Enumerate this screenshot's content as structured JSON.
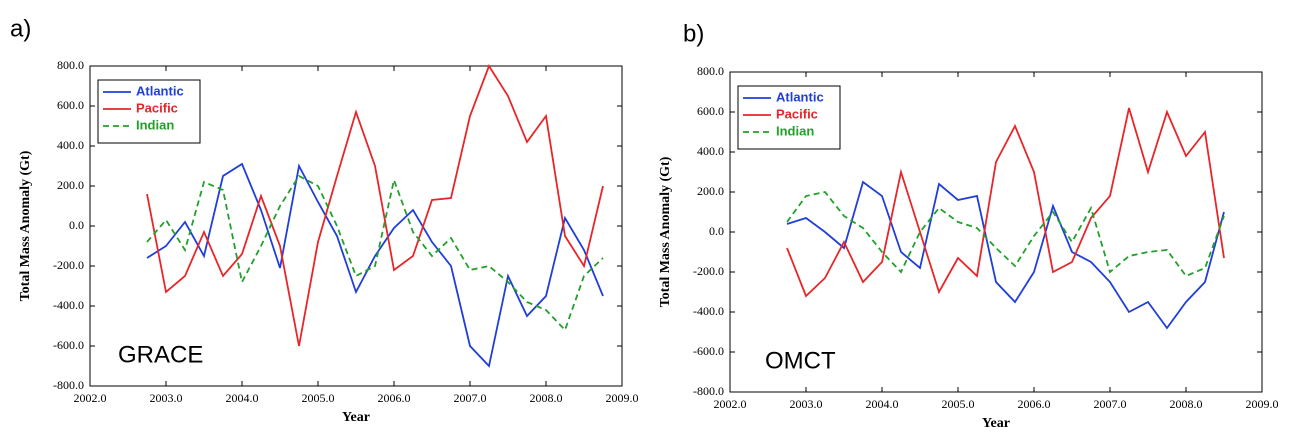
{
  "chart_data": [
    {
      "type": "line",
      "panel_label": "a)",
      "annotation": "GRACE",
      "x_label": "Year",
      "y_label": "Total Mass Anomaly (Gt)",
      "xlim": [
        2002,
        2009
      ],
      "ylim": [
        -800,
        800
      ],
      "xticks": [
        {
          "value": 2002,
          "label": "2002.0"
        },
        {
          "value": 2003,
          "label": "2003.0"
        },
        {
          "value": 2004,
          "label": "2004.0"
        },
        {
          "value": 2005,
          "label": "2005.0"
        },
        {
          "value": 2006,
          "label": "2006.0"
        },
        {
          "value": 2007,
          "label": "2007.0"
        },
        {
          "value": 2008,
          "label": "2008.0"
        },
        {
          "value": 2009,
          "label": "2009.0"
        }
      ],
      "yticks": [
        {
          "value": -800,
          "label": "-800.0"
        },
        {
          "value": -600,
          "label": "-600.0"
        },
        {
          "value": -400,
          "label": "-400.0"
        },
        {
          "value": -200,
          "label": "-200.0"
        },
        {
          "value": 0,
          "label": "0.0"
        },
        {
          "value": 200,
          "label": "200.0"
        },
        {
          "value": 400,
          "label": "400.0"
        },
        {
          "value": 600,
          "label": "600.0"
        },
        {
          "value": 800,
          "label": "800.0"
        }
      ],
      "legend": "upper left",
      "x": [
        2002.75,
        2003,
        2003.25,
        2003.5,
        2003.75,
        2004,
        2004.25,
        2004.5,
        2004.75,
        2005,
        2005.25,
        2005.5,
        2005.75,
        2006,
        2006.25,
        2006.5,
        2006.75,
        2007,
        2007.25,
        2007.5,
        2007.75,
        2008,
        2008.25,
        2008.5,
        2008.75
      ],
      "series": [
        {
          "name": "Atlantic",
          "color": "#1f3fd8",
          "linestyle": "solid",
          "values": [
            -160,
            -100,
            20,
            -150,
            250,
            310,
            80,
            -210,
            300,
            120,
            -50,
            -330,
            -150,
            -10,
            80,
            -80,
            -200,
            -600,
            -700,
            -250,
            -450,
            -350,
            40,
            -120,
            -350
          ]
        },
        {
          "name": "Pacific",
          "color": "#e8262a",
          "linestyle": "solid",
          "values": [
            160,
            -330,
            -250,
            -30,
            -250,
            -140,
            150,
            -100,
            -600,
            -80,
            250,
            570,
            300,
            -220,
            -150,
            130,
            140,
            550,
            800,
            650,
            420,
            550,
            -50,
            -200,
            200
          ]
        },
        {
          "name": "Indian",
          "color": "#22a02a",
          "linestyle": "dashed",
          "values": [
            -80,
            30,
            -120,
            220,
            180,
            -280,
            -100,
            100,
            250,
            200,
            0,
            -250,
            -200,
            230,
            -30,
            -150,
            -60,
            -220,
            -200,
            -280,
            -380,
            -420,
            -520,
            -250,
            -160
          ]
        }
      ]
    },
    {
      "type": "line",
      "panel_label": "b)",
      "annotation": "OMCT",
      "x_label": "Year",
      "y_label": "Total Mass Anomaly (Gt)",
      "xlim": [
        2002,
        2009
      ],
      "ylim": [
        -800,
        800
      ],
      "xticks": [
        {
          "value": 2002,
          "label": "2002.0"
        },
        {
          "value": 2003,
          "label": "2003.0"
        },
        {
          "value": 2004,
          "label": "2004.0"
        },
        {
          "value": 2005,
          "label": "2005.0"
        },
        {
          "value": 2006,
          "label": "2006.0"
        },
        {
          "value": 2007,
          "label": "2007.0"
        },
        {
          "value": 2008,
          "label": "2008.0"
        },
        {
          "value": 2009,
          "label": "2009.0"
        }
      ],
      "yticks": [
        {
          "value": -800,
          "label": "-800.0"
        },
        {
          "value": -600,
          "label": "-600.0"
        },
        {
          "value": -400,
          "label": "-400.0"
        },
        {
          "value": -200,
          "label": "-200.0"
        },
        {
          "value": 0,
          "label": "0.0"
        },
        {
          "value": 200,
          "label": "200.0"
        },
        {
          "value": 400,
          "label": "400.0"
        },
        {
          "value": 600,
          "label": "600.0"
        },
        {
          "value": 800,
          "label": "800.0"
        }
      ],
      "legend": "upper left",
      "x": [
        2002.75,
        2003,
        2003.25,
        2003.5,
        2003.75,
        2004,
        2004.25,
        2004.5,
        2004.75,
        2005,
        2005.25,
        2005.5,
        2005.75,
        2006,
        2006.25,
        2006.5,
        2006.75,
        2007,
        2007.25,
        2007.5,
        2007.75,
        2008,
        2008.25,
        2008.5
      ],
      "series": [
        {
          "name": "Atlantic",
          "color": "#1f3fd8",
          "linestyle": "solid",
          "values": [
            40,
            70,
            0,
            -80,
            250,
            180,
            -100,
            -180,
            240,
            160,
            180,
            -250,
            -350,
            -200,
            130,
            -100,
            -150,
            -250,
            -400,
            -350,
            -480,
            -350,
            -250,
            100
          ]
        },
        {
          "name": "Pacific",
          "color": "#e8262a",
          "linestyle": "solid",
          "values": [
            -80,
            -320,
            -230,
            -50,
            -250,
            -150,
            300,
            0,
            -300,
            -130,
            -220,
            350,
            530,
            300,
            -200,
            -150,
            70,
            180,
            620,
            300,
            600,
            380,
            500,
            -130
          ]
        },
        {
          "name": "Indian",
          "color": "#22a02a",
          "linestyle": "dashed",
          "values": [
            50,
            180,
            200,
            80,
            20,
            -100,
            -200,
            0,
            120,
            50,
            20,
            -80,
            -170,
            -20,
            100,
            -50,
            120,
            -200,
            -120,
            -100,
            -90,
            -220,
            -180,
            80
          ]
        }
      ]
    }
  ]
}
